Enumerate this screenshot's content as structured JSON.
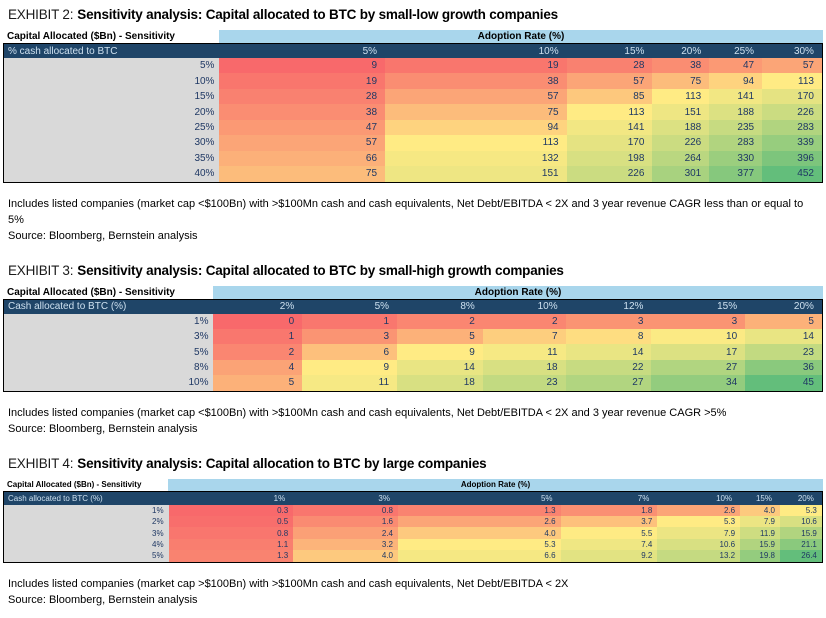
{
  "colors": {
    "scale_min": "#F8696B",
    "scale_mid": "#FFEB84",
    "scale_max": "#63BE7B",
    "band_blue": "#A9D6EC",
    "header_navy": "#1F4568",
    "header_navy_text": "#CDE0EF",
    "label_gray": "#D9D9D9",
    "value_text": "#1F3864",
    "border_black": "#000000"
  },
  "exhibits": [
    {
      "label": "EXHIBIT 2:",
      "title": "Sensitivity analysis: Capital allocated to BTC by small-low growth companies",
      "corner_header": "Capital Allocated ($Bn) - Sensitivity",
      "adoption_header": "Adoption Rate (%)",
      "row_header": "% cash allocated to BTC",
      "col_widths_pct": [
        26.34,
        20.24,
        22.2,
        10.49,
        6.95,
        6.46,
        7.32
      ],
      "compact": false,
      "decimals": 0,
      "footnote_lines": [
        "Includes listed companies (market cap <$100Bn) with >$100Mn cash and cash equivalents, Net Debt/EBITDA < 2X and 3 year revenue CAGR less than or equal to",
        "5%"
      ],
      "source": "Source: Bloomberg, Bernstein analysis"
    },
    {
      "label": "EXHIBIT 3:",
      "title": "Sensitivity analysis: Capital allocated to BTC by small-high growth companies",
      "corner_header": "Capital Allocated ($Bn) - Sensitivity",
      "adoption_header": "Adoption Rate (%)",
      "row_header": "Cash allocated to BTC (%)",
      "col_widths_pct": [
        25.61,
        10.85,
        11.59,
        10.49,
        10.12,
        10.49,
        11.46,
        9.39
      ],
      "compact": false,
      "decimals": 0,
      "footnote_lines": [
        "Includes listed companies (market cap <$100Bn) with >$100Mn cash and cash equivalents, Net Debt/EBITDA < 2X and 3 year revenue CAGR >5%"
      ],
      "source": "Source: Bloomberg, Bernstein analysis"
    },
    {
      "label": "EXHIBIT 4:",
      "title": "Sensitivity analysis: Capital allocation to BTC by large companies",
      "corner_header": "Capital Allocated ($Bn) - Sensitivity",
      "adoption_header": "Adoption Rate (%)",
      "row_header": "Cash allocated to BTC (%)",
      "col_widths_pct": [
        20.12,
        15.24,
        12.8,
        19.88,
        11.83,
        10.12,
        4.88,
        5.12
      ],
      "compact": true,
      "decimals": 1,
      "footnote_lines": [
        "Includes listed companies (market cap >$100Bn) with >$100Mn cash and cash equivalents, Net Debt/EBITDA < 2X"
      ],
      "source": "Source: Bloomberg, Bernstein analysis"
    }
  ],
  "chart_data": [
    {
      "type": "heatmap",
      "title": "Sensitivity analysis: Capital allocated to BTC by small-low growth companies",
      "unit": "Capital Allocated ($Bn)",
      "x_label": "Adoption Rate (%)",
      "y_label": "% cash allocated to BTC",
      "x": [
        "5%",
        "10%",
        "15%",
        "20%",
        "25%",
        "30%"
      ],
      "y": [
        "5%",
        "10%",
        "15%",
        "20%",
        "25%",
        "30%",
        "35%",
        "40%"
      ],
      "values": [
        [
          9,
          19,
          28,
          38,
          47,
          57
        ],
        [
          19,
          38,
          57,
          75,
          94,
          113
        ],
        [
          28,
          57,
          85,
          113,
          141,
          170
        ],
        [
          38,
          75,
          113,
          151,
          188,
          226
        ],
        [
          47,
          94,
          141,
          188,
          235,
          283
        ],
        [
          57,
          113,
          170,
          226,
          283,
          339
        ],
        [
          66,
          132,
          198,
          264,
          330,
          396
        ],
        [
          75,
          151,
          226,
          301,
          377,
          452
        ]
      ],
      "color_scale": {
        "min_color": "#F8696B",
        "mid_color": "#FFEB84",
        "max_color": "#63BE7B",
        "midpoint": "median"
      }
    },
    {
      "type": "heatmap",
      "title": "Sensitivity analysis: Capital allocated to BTC by small-high growth companies",
      "unit": "Capital Allocated ($Bn)",
      "x_label": "Adoption Rate (%)",
      "y_label": "Cash allocated to BTC (%)",
      "x": [
        "2%",
        "5%",
        "8%",
        "10%",
        "12%",
        "15%",
        "20%"
      ],
      "y": [
        "1%",
        "3%",
        "5%",
        "8%",
        "10%"
      ],
      "values": [
        [
          0,
          1,
          2,
          2,
          3,
          3,
          5
        ],
        [
          1,
          3,
          5,
          7,
          8,
          10,
          14
        ],
        [
          2,
          6,
          9,
          11,
          14,
          17,
          23
        ],
        [
          4,
          9,
          14,
          18,
          22,
          27,
          36
        ],
        [
          5,
          11,
          18,
          23,
          27,
          34,
          45
        ]
      ],
      "color_scale": {
        "min_color": "#F8696B",
        "mid_color": "#FFEB84",
        "max_color": "#63BE7B",
        "midpoint": "median"
      }
    },
    {
      "type": "heatmap",
      "title": "Sensitivity analysis: Capital allocation to BTC by large companies",
      "unit": "Capital Allocated ($Bn)",
      "x_label": "Adoption Rate (%)",
      "y_label": "Cash allocated to BTC (%)",
      "x": [
        "1%",
        "3%",
        "5%",
        "7%",
        "10%",
        "15%",
        "20%"
      ],
      "y": [
        "1%",
        "2%",
        "3%",
        "4%",
        "5%"
      ],
      "values": [
        [
          0.3,
          0.8,
          1.3,
          1.8,
          2.6,
          4.0,
          5.3
        ],
        [
          0.5,
          1.6,
          2.6,
          3.7,
          5.3,
          7.9,
          10.6
        ],
        [
          0.8,
          2.4,
          4.0,
          5.5,
          7.9,
          11.9,
          15.9
        ],
        [
          1.1,
          3.2,
          5.3,
          7.4,
          10.6,
          15.9,
          21.1
        ],
        [
          1.3,
          4.0,
          6.6,
          9.2,
          13.2,
          19.8,
          26.4
        ]
      ],
      "color_scale": {
        "min_color": "#F8696B",
        "mid_color": "#FFEB84",
        "max_color": "#63BE7B",
        "midpoint": "median"
      }
    }
  ]
}
